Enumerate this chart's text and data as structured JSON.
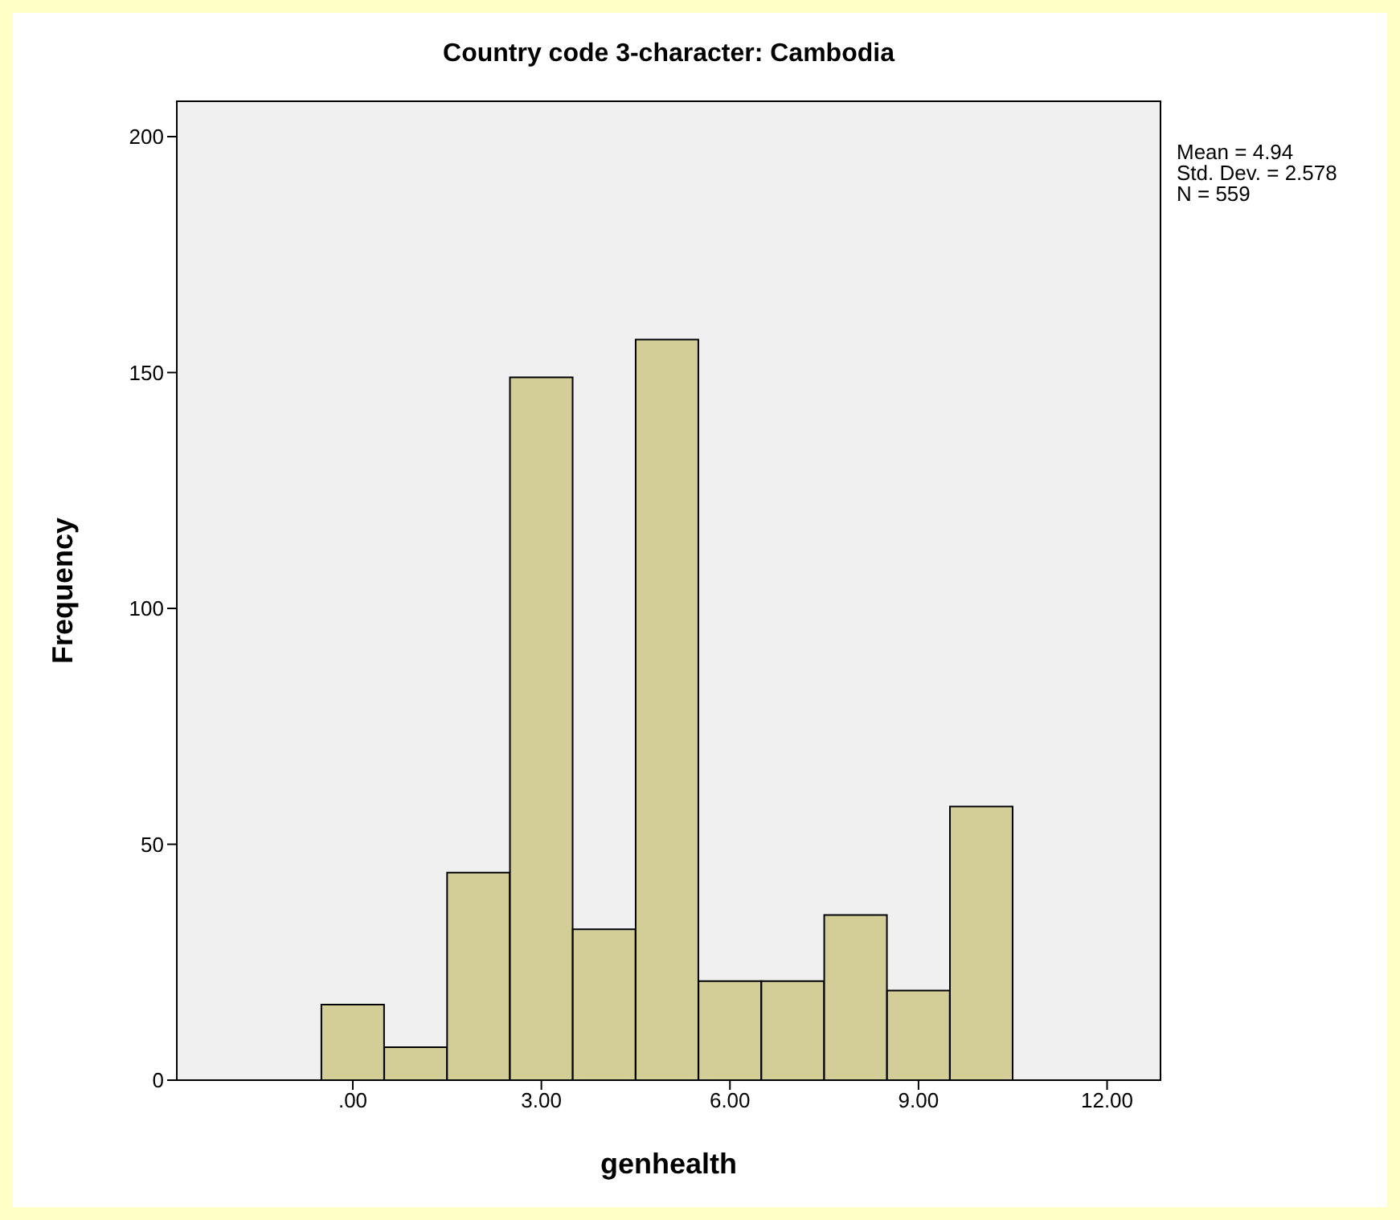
{
  "chart_data": {
    "type": "histogram",
    "title": "Country code 3-character: Cambodia",
    "xlabel": "genhealth",
    "ylabel": "Frequency",
    "bins": [
      -0.5,
      0.5,
      1.5,
      2.5,
      3.5,
      4.5,
      5.5,
      6.5,
      7.5,
      8.5,
      9.5,
      10.5
    ],
    "values": [
      16,
      7,
      44,
      149,
      32,
      157,
      21,
      21,
      35,
      19,
      58
    ],
    "color": "#d3ce97",
    "xlim": [
      -2.8,
      12.85
    ],
    "xticks": [
      {
        "value": 0,
        "label": ".00"
      },
      {
        "value": 3,
        "label": "3.00"
      },
      {
        "value": 6,
        "label": "6.00"
      },
      {
        "value": 9,
        "label": "9.00"
      },
      {
        "value": 12,
        "label": "12.00"
      }
    ],
    "ylim": [
      0,
      207.5
    ],
    "yticks": [
      0,
      50,
      100,
      150,
      200
    ],
    "annotations": [
      "Mean = 4.94",
      "Std. Dev. = 2.578",
      "N = 559"
    ]
  }
}
